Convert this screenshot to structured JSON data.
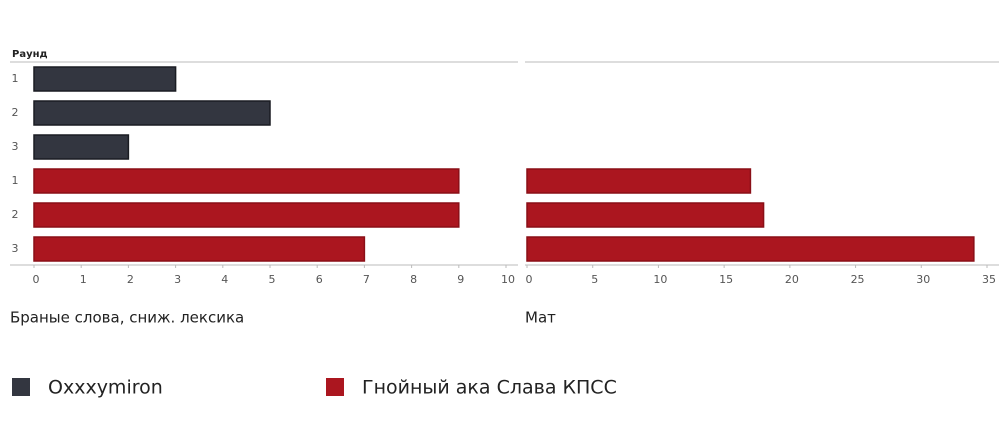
{
  "chart_data": [
    {
      "type": "bar",
      "orientation": "horizontal",
      "y_label": "Раунд",
      "x_label": "Браные слова, сниж. лексика",
      "categories": [
        "1",
        "2",
        "3",
        "1",
        "2",
        "3"
      ],
      "series": [
        {
          "name": "Oxxxymiron",
          "color": "#333640",
          "values": [
            3,
            5,
            2,
            null,
            null,
            null
          ]
        },
        {
          "name": "Гнойный ака Слава КПСС",
          "color": "#ab161f",
          "values": [
            null,
            null,
            null,
            9,
            9,
            7
          ]
        }
      ],
      "xlim": [
        0,
        10
      ],
      "xticks": [
        0,
        1,
        2,
        3,
        4,
        5,
        6,
        7,
        8,
        9,
        10
      ]
    },
    {
      "type": "bar",
      "orientation": "horizontal",
      "x_label": "Мат",
      "series": [
        {
          "color": "#333640",
          "values": [
            0,
            0,
            0,
            null,
            null,
            null
          ]
        },
        {
          "color": "#ab161f",
          "values": [
            null,
            null,
            null,
            17,
            18,
            34
          ]
        }
      ],
      "xlim": [
        0,
        35
      ],
      "xticks": [
        0,
        5,
        10,
        15,
        20,
        25,
        30,
        35
      ]
    }
  ]
}
